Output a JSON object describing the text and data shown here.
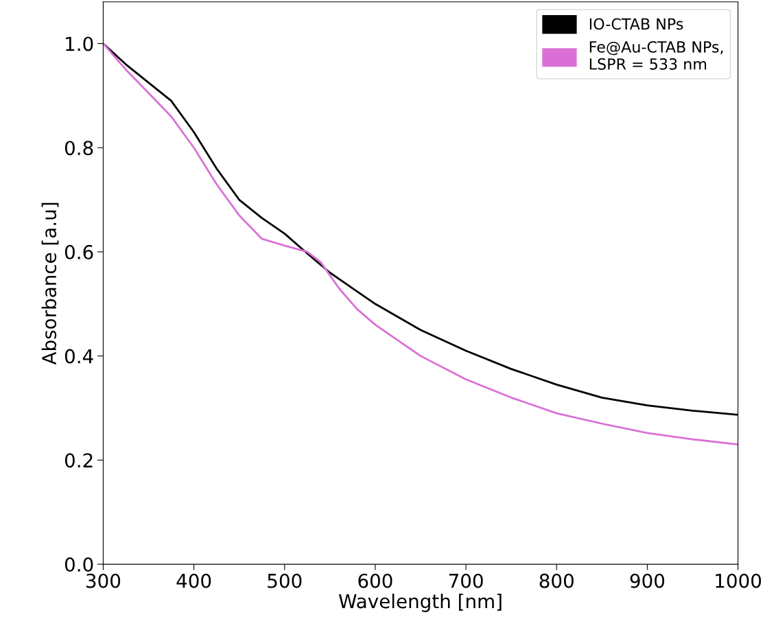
{
  "chart_data": {
    "type": "line",
    "xlabel": "Wavelength [nm]",
    "ylabel": "Absorbance [a.u]",
    "xlim": [
      300,
      1000
    ],
    "xticks": [
      300,
      400,
      500,
      600,
      700,
      800,
      900,
      1000
    ],
    "ylim": [
      0,
      1.08
    ],
    "yticks": [
      {
        "value": 0,
        "label": "0.0"
      },
      0.2,
      0.4,
      0.6,
      0.8,
      {
        "value": 1,
        "label": "1.0"
      }
    ],
    "grid": false,
    "legend": "top right",
    "marker": "none",
    "line_style": "solid",
    "series": [
      {
        "name": "IO-CTAB NPs",
        "color": "#000000",
        "x": [
          300,
          325,
          350,
          375,
          400,
          425,
          450,
          475,
          500,
          525,
          550,
          575,
          600,
          650,
          700,
          750,
          800,
          850,
          900,
          950,
          1000
        ],
        "values": [
          1.0,
          0.96,
          0.925,
          0.89,
          0.83,
          0.76,
          0.7,
          0.665,
          0.635,
          0.597,
          0.56,
          0.53,
          0.5,
          0.45,
          0.41,
          0.375,
          0.345,
          0.32,
          0.305,
          0.295,
          0.287
        ]
      },
      {
        "name": "Fe@Au-CTAB NPs,\nLSPR = 533 nm",
        "color": "#da70d6",
        "x": [
          300,
          325,
          350,
          375,
          400,
          425,
          450,
          475,
          500,
          525,
          540,
          560,
          580,
          600,
          650,
          700,
          750,
          800,
          850,
          900,
          950,
          1000
        ],
        "values": [
          1.0,
          0.95,
          0.905,
          0.86,
          0.8,
          0.73,
          0.67,
          0.625,
          0.612,
          0.6,
          0.58,
          0.53,
          0.49,
          0.46,
          0.4,
          0.355,
          0.32,
          0.29,
          0.27,
          0.252,
          0.24,
          0.23
        ]
      }
    ]
  }
}
